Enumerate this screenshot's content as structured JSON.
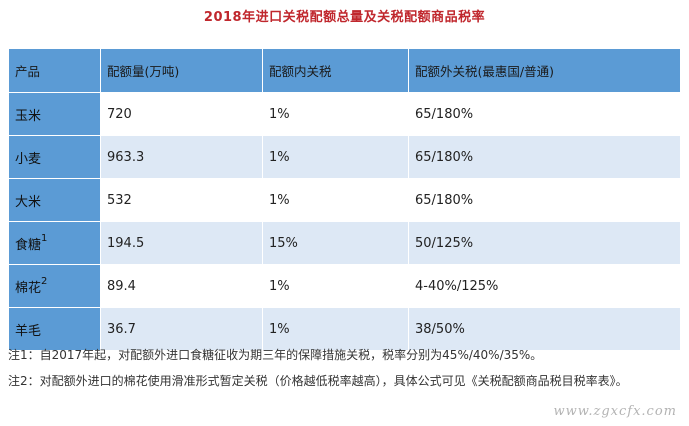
{
  "title": "2018年进口关税配额总量及关税配额商品税率",
  "table": {
    "headers": [
      "产品",
      "配额量(万吨)",
      "配额内关税",
      "配额外关税(最惠国/普通)"
    ],
    "rows": [
      {
        "product": "玉米",
        "sup": "",
        "quota": "720",
        "in_quota": "1%",
        "out_quota": "65/180%"
      },
      {
        "product": "小麦",
        "sup": "",
        "quota": "963.3",
        "in_quota": "1%",
        "out_quota": "65/180%"
      },
      {
        "product": "大米",
        "sup": "",
        "quota": "532",
        "in_quota": "1%",
        "out_quota": "65/180%"
      },
      {
        "product": "食糖",
        "sup": "1",
        "quota": "194.5",
        "in_quota": "15%",
        "out_quota": "50/125%"
      },
      {
        "product": "棉花",
        "sup": "2",
        "quota": "89.4",
        "in_quota": "1%",
        "out_quota": "4-40%/125%"
      },
      {
        "product": "羊毛",
        "sup": "",
        "quota": "36.7",
        "in_quota": "1%",
        "out_quota": "38/50%"
      }
    ]
  },
  "notes": {
    "note1": "注1：自2017年起，对配额外进口食糖征收为期三年的保障措施关税，税率分别为45%/40%/35%。",
    "note2": "注2：对配额外进口的棉花使用滑准形式暂定关税（价格越低税率越高），具体公式可见《关税配额商品税目税率表》。"
  },
  "watermark": "www.zgxcfx.com"
}
